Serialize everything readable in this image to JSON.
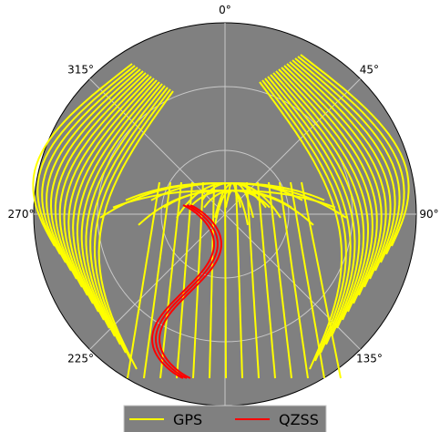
{
  "chart_data": {
    "type": "line",
    "projection": "polar",
    "theta_direction": "clockwise",
    "theta_zero": "top",
    "theta_ticks": [
      {
        "deg": 0,
        "label": "0°"
      },
      {
        "deg": 45,
        "label": "45°"
      },
      {
        "deg": 90,
        "label": "90°"
      },
      {
        "deg": 135,
        "label": "135°"
      },
      {
        "deg": 225,
        "label": "225°"
      },
      {
        "deg": 270,
        "label": "270°"
      },
      {
        "deg": 315,
        "label": "315°"
      }
    ],
    "grid": true,
    "legend_position": "bottom-center",
    "series": [
      {
        "name": "GPS",
        "color": "#ffff00"
      },
      {
        "name": "QZSS",
        "color": "#ff0000"
      }
    ]
  },
  "colors": {
    "plot_background": "#808080",
    "grid": "#c8c8c8",
    "figure_background": "#ffffff",
    "legend_background": "#808080"
  }
}
